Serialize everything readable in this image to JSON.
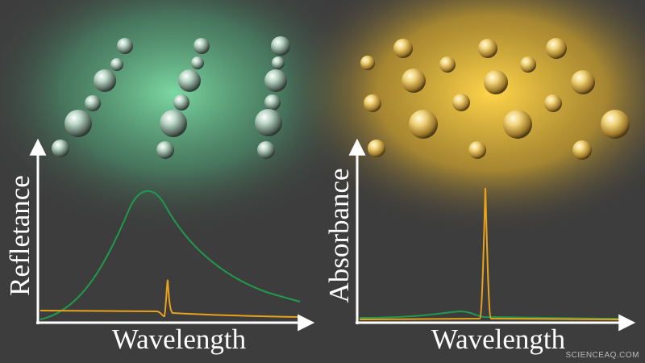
{
  "left_panel": {
    "y_axis_label": "Refletance",
    "x_axis_label": "Wavelength"
  },
  "right_panel": {
    "y_axis_label": "Absorbance",
    "x_axis_label": "Wavelength"
  },
  "watermark": "SCIENCEAQ.COM"
}
